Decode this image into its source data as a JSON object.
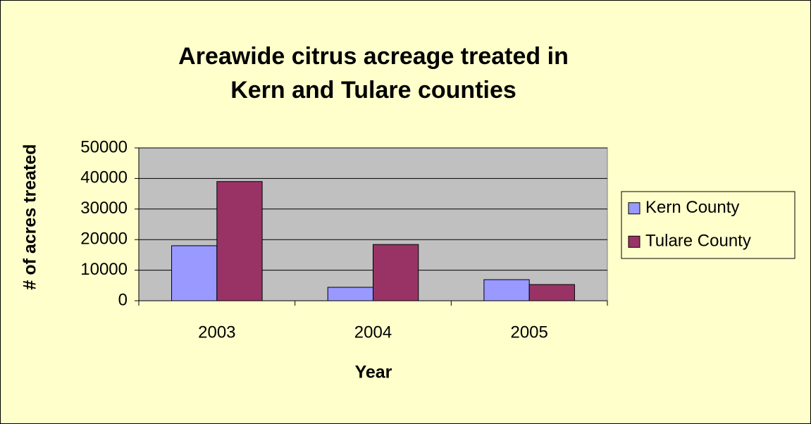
{
  "chart_data": {
    "type": "bar",
    "title": [
      "Areawide citrus acreage treated in",
      "Kern and Tulare counties"
    ],
    "x_label": "Year",
    "y_label": "# of acres treated",
    "categories": [
      "2003",
      "2004",
      "2005"
    ],
    "series": [
      {
        "name": "Kern County",
        "color": "#9999ff",
        "values": [
          18000,
          4400,
          6900
        ]
      },
      {
        "name": "Tulare County",
        "color": "#993366",
        "values": [
          39000,
          18400,
          5300
        ]
      }
    ],
    "ylim": [
      0,
      50000
    ],
    "yticks": [
      0,
      10000,
      20000,
      30000,
      40000,
      50000
    ],
    "grid": true,
    "legend": "right"
  }
}
